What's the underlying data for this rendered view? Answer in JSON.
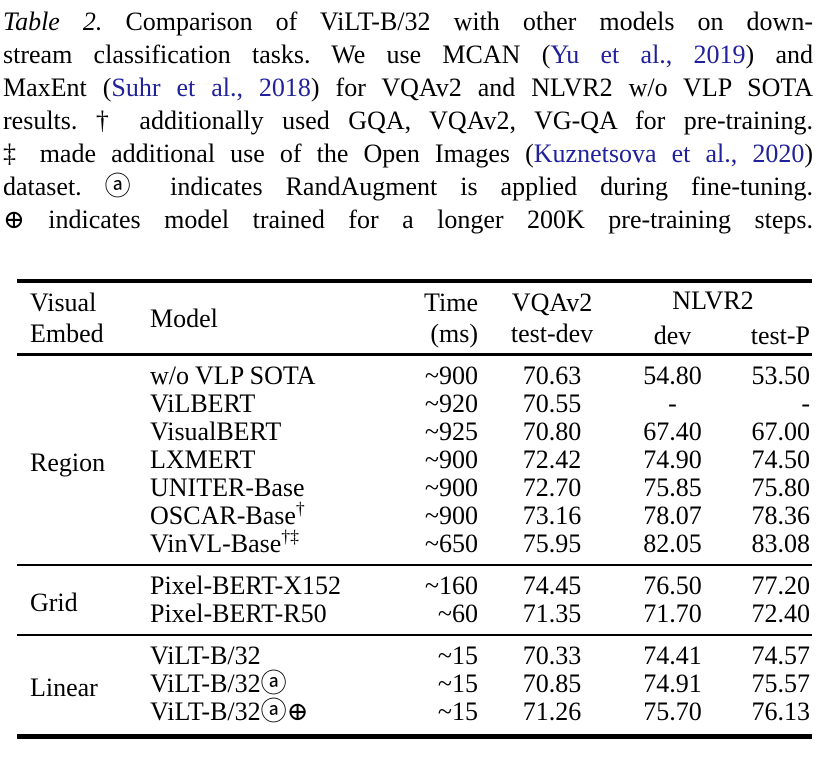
{
  "caption": {
    "cite_color": "#21219b",
    "lines": [
      [
        {
          "t": "Table 2.",
          "s": "i"
        },
        {
          "t": " Comparison of ViLT-B/32 with other models on down-"
        }
      ],
      [
        {
          "t": "stream classification tasks. We use MCAN ("
        },
        {
          "t": "Yu et al., 2019",
          "s": "c"
        },
        {
          "t": ") and"
        }
      ],
      [
        {
          "t": "MaxEnt ("
        },
        {
          "t": "Suhr et al., 2018",
          "s": "c"
        },
        {
          "t": ") for VQAv2 and NLVR2 w/o VLP SOTA"
        }
      ],
      [
        {
          "t": "results. † additionally used GQA, VQAv2, VG-QA for pre-training."
        }
      ],
      [
        {
          "t": "‡ made additional use of the Open Images ("
        },
        {
          "t": "Kuznetsova et al., 2020",
          "s": "c"
        },
        {
          "t": ")"
        }
      ],
      [
        {
          "t": "dataset. ⓐ indicates RandAugment is applied during fine-tuning."
        }
      ],
      [
        {
          "t": "⊕ indicates model trained for a longer 200K pre-training steps."
        }
      ]
    ]
  },
  "table": {
    "header": {
      "visual_embed_line1": "Visual",
      "visual_embed_line2": "Embed",
      "model": "Model",
      "time_line1": "Time",
      "time_line2": "(ms)",
      "vqav2_line1": "VQAv2",
      "vqav2_line2": "test-dev",
      "nlvr2": "NLVR2",
      "dev": "dev",
      "testp": "test-P"
    },
    "sections": [
      {
        "group": "Region",
        "rows": [
          {
            "model": "w/o VLP SOTA",
            "time": "~900",
            "vqa": "70.63",
            "dev": "54.80",
            "testp": "53.50"
          },
          {
            "model": "ViLBERT",
            "time": "~920",
            "vqa": "70.55",
            "dev": "-",
            "testp": "-"
          },
          {
            "model": "VisualBERT",
            "time": "~925",
            "vqa": "70.80",
            "dev": "67.40",
            "testp": "67.00"
          },
          {
            "model": "LXMERT",
            "time": "~900",
            "vqa": "72.42",
            "dev": "74.90",
            "testp": "74.50"
          },
          {
            "model": "UNITER-Base",
            "time": "~900",
            "vqa": "72.70",
            "dev": "75.85",
            "testp": "75.80"
          },
          {
            "model": "OSCAR-Base",
            "model_sup": "†",
            "time": "~900",
            "vqa": "73.16",
            "dev": "78.07",
            "testp": "78.36"
          },
          {
            "model": "VinVL-Base",
            "model_sup": "†‡",
            "time": "~650",
            "vqa": "75.95",
            "dev": "82.05",
            "testp": "83.08"
          }
        ]
      },
      {
        "group": "Grid",
        "rows": [
          {
            "model": "Pixel-BERT-X152",
            "time": "~160",
            "vqa": "74.45",
            "dev": "76.50",
            "testp": "77.20"
          },
          {
            "model": "Pixel-BERT-R50",
            "time": "~60",
            "vqa": "71.35",
            "dev": "71.70",
            "testp": "72.40"
          }
        ]
      },
      {
        "group": "Linear",
        "rows": [
          {
            "model": "ViLT-B/32",
            "time": "~15",
            "vqa": "70.33",
            "dev": "74.41",
            "testp": "74.57"
          },
          {
            "model": "ViLT-B/32ⓐ",
            "time": "~15",
            "vqa": "70.85",
            "dev": "74.91",
            "testp": "75.57"
          },
          {
            "model": "ViLT-B/32ⓐ⊕",
            "time": "~15",
            "vqa": "71.26",
            "dev": "75.70",
            "testp": "76.13"
          }
        ]
      }
    ]
  }
}
